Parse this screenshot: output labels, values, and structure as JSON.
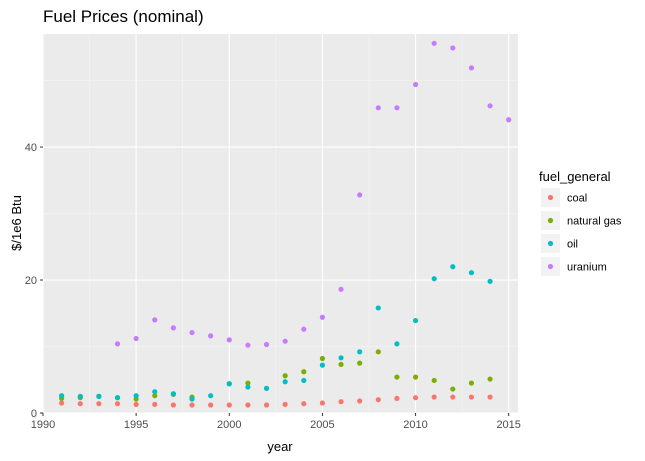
{
  "chart_data": {
    "type": "scatter",
    "title": "Fuel Prices (nominal)",
    "xlabel": "year",
    "ylabel": "$/1e6 Btu",
    "xlim": [
      1990,
      2015.5
    ],
    "ylim": [
      0,
      57
    ],
    "x_ticks": [
      1990,
      1995,
      2000,
      2005,
      2010,
      2015
    ],
    "y_ticks": [
      0,
      20,
      40
    ],
    "grid": true,
    "legend": {
      "title": "fuel_general",
      "placement": "right"
    },
    "series": [
      {
        "name": "coal",
        "color": "#F8766D",
        "points": [
          [
            1991,
            1.5
          ],
          [
            1992,
            1.4
          ],
          [
            1993,
            1.4
          ],
          [
            1994,
            1.4
          ],
          [
            1995,
            1.3
          ],
          [
            1996,
            1.3
          ],
          [
            1997,
            1.2
          ],
          [
            1998,
            1.2
          ],
          [
            1999,
            1.2
          ],
          [
            2000,
            1.2
          ],
          [
            2001,
            1.2
          ],
          [
            2002,
            1.2
          ],
          [
            2003,
            1.3
          ],
          [
            2004,
            1.4
          ],
          [
            2005,
            1.5
          ],
          [
            2006,
            1.7
          ],
          [
            2007,
            1.8
          ],
          [
            2008,
            2.0
          ],
          [
            2009,
            2.2
          ],
          [
            2010,
            2.3
          ],
          [
            2011,
            2.4
          ],
          [
            2012,
            2.4
          ],
          [
            2013,
            2.4
          ],
          [
            2014,
            2.4
          ]
        ]
      },
      {
        "name": "natural gas",
        "color": "#7CAE00",
        "points": [
          [
            1991,
            2.2
          ],
          [
            1992,
            2.3
          ],
          [
            1993,
            2.5
          ],
          [
            1994,
            2.3
          ],
          [
            1995,
            2.1
          ],
          [
            1996,
            2.6
          ],
          [
            1997,
            2.8
          ],
          [
            1998,
            2.4
          ],
          [
            2000,
            4.4
          ],
          [
            2001,
            4.5
          ],
          [
            2003,
            5.6
          ],
          [
            2004,
            6.2
          ],
          [
            2005,
            8.2
          ],
          [
            2006,
            7.3
          ],
          [
            2007,
            7.5
          ],
          [
            2008,
            9.2
          ],
          [
            2009,
            5.4
          ],
          [
            2010,
            5.4
          ],
          [
            2011,
            4.9
          ],
          [
            2012,
            3.6
          ],
          [
            2013,
            4.5
          ],
          [
            2014,
            5.1
          ]
        ]
      },
      {
        "name": "oil",
        "color": "#00BFC4",
        "points": [
          [
            1991,
            2.6
          ],
          [
            1992,
            2.5
          ],
          [
            1993,
            2.5
          ],
          [
            1994,
            2.3
          ],
          [
            1995,
            2.6
          ],
          [
            1996,
            3.2
          ],
          [
            1997,
            2.9
          ],
          [
            1998,
            2.1
          ],
          [
            1999,
            2.6
          ],
          [
            2000,
            4.4
          ],
          [
            2001,
            3.9
          ],
          [
            2002,
            3.7
          ],
          [
            2003,
            4.7
          ],
          [
            2004,
            4.9
          ],
          [
            2005,
            7.2
          ],
          [
            2006,
            8.3
          ],
          [
            2007,
            9.2
          ],
          [
            2008,
            15.8
          ],
          [
            2009,
            10.4
          ],
          [
            2010,
            13.9
          ],
          [
            2011,
            20.2
          ],
          [
            2012,
            22.0
          ],
          [
            2013,
            21.1
          ],
          [
            2014,
            19.8
          ]
        ]
      },
      {
        "name": "uranium",
        "color": "#C77CFF",
        "points": [
          [
            1994,
            10.4
          ],
          [
            1995,
            11.2
          ],
          [
            1996,
            14.0
          ],
          [
            1997,
            12.8
          ],
          [
            1998,
            12.1
          ],
          [
            1999,
            11.6
          ],
          [
            2000,
            11.0
          ],
          [
            2001,
            10.2
          ],
          [
            2002,
            10.3
          ],
          [
            2003,
            10.8
          ],
          [
            2004,
            12.6
          ],
          [
            2005,
            14.4
          ],
          [
            2006,
            18.6
          ],
          [
            2007,
            32.8
          ],
          [
            2008,
            45.9
          ],
          [
            2009,
            45.9
          ],
          [
            2010,
            49.4
          ],
          [
            2011,
            55.6
          ],
          [
            2012,
            54.9
          ],
          [
            2013,
            51.9
          ],
          [
            2014,
            46.2
          ],
          [
            2015,
            44.1
          ]
        ]
      }
    ]
  }
}
